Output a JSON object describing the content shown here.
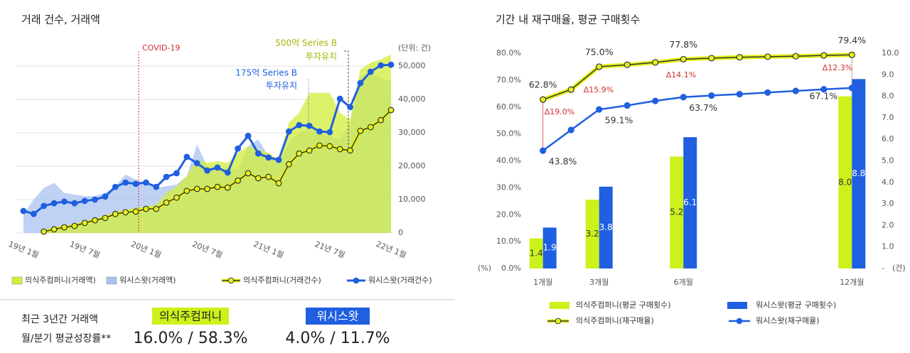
{
  "chart_data": [
    {
      "type": "combo",
      "title": "거래 건수, 거래액",
      "unit_label": "(단위: 건)",
      "categories": [
        "19년 1월",
        null,
        null,
        null,
        null,
        null,
        "19년 7월",
        null,
        null,
        null,
        null,
        null,
        "20년 1월",
        null,
        null,
        null,
        null,
        null,
        "20년 7월",
        null,
        null,
        null,
        null,
        null,
        "21년 1월",
        null,
        null,
        null,
        null,
        null,
        "21년 7월",
        null,
        null,
        null,
        null,
        null,
        "22년 1월"
      ],
      "ylim": [
        0,
        55000
      ],
      "yticks": [
        0,
        {
          "value": 10000,
          "label": "10,000"
        },
        {
          "value": 20000,
          "label": "20,000"
        },
        {
          "value": 30000,
          "label": "30,000"
        },
        {
          "value": 40000,
          "label": "40,000"
        },
        {
          "value": 50000,
          "label": "50,000"
        }
      ],
      "grid": true,
      "series": [
        {
          "name": "워시스왓(거래액)",
          "kind": "area",
          "color": "#a9c3f0",
          "values": [
            5500,
            10000,
            13500,
            15000,
            12000,
            11500,
            11000,
            11000,
            12000,
            14000,
            17500,
            16000,
            15000,
            13500,
            14000,
            14500,
            17000,
            26500,
            20000,
            19000,
            19500,
            19000,
            26000,
            28000,
            23000,
            21000,
            27000,
            30000,
            31000,
            30000,
            29000,
            28000,
            33000,
            47000,
            48000,
            46500,
            45500
          ]
        },
        {
          "name": "의식주컴퍼니(거래액)",
          "kind": "area",
          "color": "#d2ee3a",
          "values": [
            null,
            null,
            500,
            1000,
            1500,
            2200,
            3000,
            4000,
            5000,
            6200,
            7000,
            7500,
            8000,
            8500,
            12000,
            14000,
            17000,
            22000,
            21000,
            21500,
            21000,
            24000,
            26000,
            25000,
            24000,
            22000,
            33000,
            36000,
            42000,
            42000,
            42000,
            36000,
            34000,
            49000,
            51000,
            52000,
            53500
          ]
        },
        {
          "name": "의식주컴퍼니(거래건수)",
          "kind": "line",
          "color": "#e4f21a",
          "edge_color": "#333333",
          "values": [
            null,
            null,
            400,
            1100,
            1700,
            2100,
            3000,
            3800,
            4500,
            5700,
            6200,
            6400,
            7200,
            7200,
            9100,
            10600,
            12600,
            13200,
            13200,
            13800,
            13600,
            15700,
            17900,
            16400,
            16800,
            14900,
            20600,
            23800,
            24700,
            26200,
            26000,
            25100,
            24700,
            30600,
            31700,
            33800,
            36800
          ]
        },
        {
          "name": "워시스왓(거래건수)",
          "kind": "line",
          "color": "#1f5fe0",
          "values": [
            6600,
            5700,
            8100,
            8900,
            9400,
            8900,
            9600,
            10000,
            10900,
            13800,
            15100,
            14700,
            15100,
            13800,
            16800,
            17900,
            22800,
            20900,
            18700,
            19600,
            18100,
            25300,
            29100,
            23800,
            22600,
            21900,
            30400,
            32300,
            32100,
            30400,
            30200,
            40200,
            37700,
            44900,
            48300,
            50200,
            50400
          ]
        }
      ],
      "annotations": [
        {
          "text": [
            "COVID-19"
          ],
          "color": "#d0312d"
        },
        {
          "text": [
            "175억 Series B",
            "투자유치"
          ],
          "color": "#1f5fe0"
        },
        {
          "text": [
            "500억 Series B",
            "투자유치"
          ],
          "color": "#a8b400"
        }
      ]
    },
    {
      "type": "combo",
      "title": "기간 내 재구매율, 평균 구매횟수",
      "x": [
        1,
        2,
        3,
        4,
        5,
        6,
        7,
        8,
        9,
        10,
        11,
        12
      ],
      "xlim": [
        0.4,
        12.6
      ],
      "xticks": [
        {
          "value": 1,
          "label": "1개월"
        },
        {
          "value": 3,
          "label": "3개월"
        },
        {
          "value": 6,
          "label": "6개월"
        },
        {
          "value": 12,
          "label": "12개월"
        }
      ],
      "ylim": [
        0,
        80
      ],
      "yticks": [
        {
          "value": 0,
          "label": "0.0%"
        },
        {
          "value": 10,
          "label": "10.0%"
        },
        {
          "value": 20,
          "label": "20.0%"
        },
        {
          "value": 30,
          "label": "30.0%"
        },
        {
          "value": 40,
          "label": "40.0%"
        },
        {
          "value": 50,
          "label": "50.0%"
        },
        {
          "value": 60,
          "label": "60.0%"
        },
        {
          "value": 70,
          "label": "70.0%"
        },
        {
          "value": 80,
          "label": "80.0%"
        }
      ],
      "y_label": "(%)",
      "y2lim": [
        0,
        10
      ],
      "y2ticks": [
        {
          "value": 0,
          "label": "-"
        },
        {
          "value": 1,
          "label": "1.0"
        },
        {
          "value": 2,
          "label": "2.0"
        },
        {
          "value": 3,
          "label": "3.0"
        },
        {
          "value": 4,
          "label": "4.0"
        },
        {
          "value": 5,
          "label": "5.0"
        },
        {
          "value": 6,
          "label": "6.0"
        },
        {
          "value": 7,
          "label": "7.0"
        },
        {
          "value": 8,
          "label": "8.0"
        },
        {
          "value": 9,
          "label": "9.0"
        },
        {
          "value": 10,
          "label": "10.0"
        }
      ],
      "y2_label": "(건)",
      "grid": false,
      "series": [
        {
          "name": "의식주컴퍼니(평균 구매횟수)",
          "kind": "bar",
          "axis": "y2",
          "color": "#ccf21c",
          "x": [
            1,
            3,
            6,
            12
          ],
          "values": [
            1.4,
            3.2,
            5.2,
            8
          ],
          "value_labels": [
            "1.4",
            "3.2",
            "5.2",
            "8.0"
          ]
        },
        {
          "name": "워시스왓(평균 구매횟수)",
          "kind": "bar",
          "axis": "y2",
          "color": "#1f5fe0",
          "x": [
            1,
            3,
            6,
            12
          ],
          "values": [
            1.9,
            3.8,
            6.1,
            8.8
          ]
        },
        {
          "name": "의식주컴퍼니(재구매율)",
          "kind": "line",
          "color": "#e4f21a",
          "edge_color": "#333333",
          "values": [
            62.8,
            66.5,
            75,
            75.7,
            76.6,
            77.8,
            78.2,
            78.5,
            78.7,
            78.9,
            79.2,
            79.4
          ],
          "value_labels": [
            "62.8%",
            null,
            "75.0%",
            null,
            null,
            "77.8%",
            null,
            null,
            null,
            null,
            null,
            "79.4%"
          ]
        },
        {
          "name": "워시스왓(재구매율)",
          "kind": "line",
          "color": "#1f5fe0",
          "values": [
            43.8,
            51.5,
            59.1,
            60.6,
            62.3,
            63.7,
            64.3,
            64.8,
            65.4,
            66,
            66.6,
            67.1
          ],
          "value_labels": [
            "43.8%",
            null,
            "59.1%",
            null,
            null,
            "63.7%",
            null,
            null,
            null,
            null,
            null,
            "67.1%"
          ]
        }
      ],
      "annotations": [
        {
          "text": "Δ19.0%",
          "color": "#d0312d"
        },
        {
          "text": "Δ15.9%",
          "color": "#d0312d"
        },
        {
          "text": "Δ14.1%",
          "color": "#d0312d"
        },
        {
          "text": "Δ12.3%",
          "color": "#d0312d"
        }
      ]
    }
  ],
  "summary": {
    "heading": "최근 3년간 거래액",
    "subheading": "월/분기 평균성장률**",
    "companies": [
      {
        "name": "의식주컴퍼니",
        "growth": "16.0% / 58.3%",
        "color": "#ccf21c"
      },
      {
        "name": "워시스왓",
        "growth": "4.0% / 11.7%",
        "color": "#1f5fe0"
      }
    ]
  }
}
